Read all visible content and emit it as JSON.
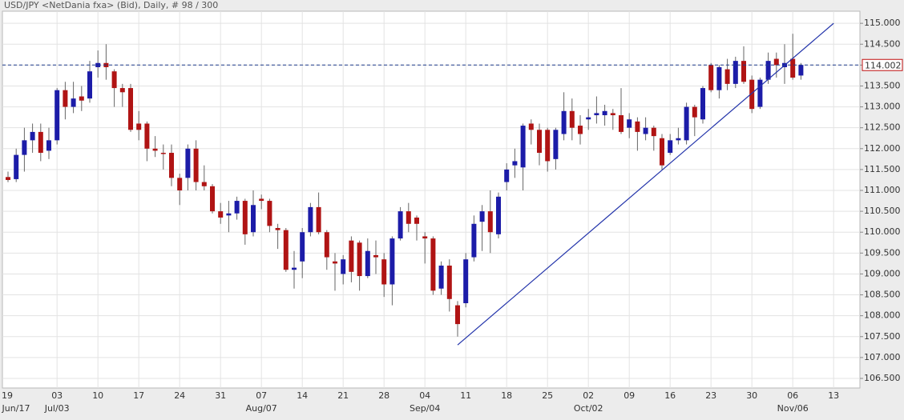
{
  "chart_data": {
    "type": "candlestick",
    "title": "USD/JPY <NetDania fxa> (Bid), Daily, # 98 / 300",
    "categories": [
      "2017-06-23",
      "2017-06-26",
      "2017-06-27",
      "2017-06-28",
      "2017-06-29",
      "2017-06-30",
      "2017-07-03",
      "2017-07-04",
      "2017-07-05",
      "2017-07-06",
      "2017-07-07",
      "2017-07-10",
      "2017-07-11",
      "2017-07-12",
      "2017-07-13",
      "2017-07-14",
      "2017-07-17",
      "2017-07-18",
      "2017-07-19",
      "2017-07-20",
      "2017-07-21",
      "2017-07-24",
      "2017-07-25",
      "2017-07-26",
      "2017-07-27",
      "2017-07-28",
      "2017-07-31",
      "2017-08-01",
      "2017-08-02",
      "2017-08-03",
      "2017-08-04",
      "2017-08-07",
      "2017-08-08",
      "2017-08-09",
      "2017-08-10",
      "2017-08-11",
      "2017-08-14",
      "2017-08-15",
      "2017-08-16",
      "2017-08-17",
      "2017-08-18",
      "2017-08-21",
      "2017-08-22",
      "2017-08-23",
      "2017-08-24",
      "2017-08-25",
      "2017-08-28",
      "2017-08-29",
      "2017-08-30",
      "2017-08-31",
      "2017-09-01",
      "2017-09-04",
      "2017-09-05",
      "2017-09-06",
      "2017-09-07",
      "2017-09-08",
      "2017-09-11",
      "2017-09-12",
      "2017-09-13",
      "2017-09-14",
      "2017-09-15",
      "2017-09-18",
      "2017-09-19",
      "2017-09-20",
      "2017-09-21",
      "2017-09-22",
      "2017-09-25",
      "2017-09-26",
      "2017-09-27",
      "2017-09-28",
      "2017-09-29",
      "2017-10-02",
      "2017-10-03",
      "2017-10-04",
      "2017-10-05",
      "2017-10-06",
      "2017-10-09",
      "2017-10-10",
      "2017-10-11",
      "2017-10-12",
      "2017-10-13",
      "2017-10-16",
      "2017-10-17",
      "2017-10-18",
      "2017-10-19",
      "2017-10-20",
      "2017-10-23",
      "2017-10-24",
      "2017-10-25",
      "2017-10-26",
      "2017-10-27",
      "2017-10-30",
      "2017-10-31",
      "2017-11-01",
      "2017-11-02",
      "2017-11-03",
      "2017-11-06",
      "2017-11-07"
    ],
    "open": [
      111.32,
      111.27,
      111.85,
      112.2,
      112.4,
      111.95,
      112.2,
      113.4,
      113.0,
      113.25,
      113.2,
      113.95,
      114.05,
      113.85,
      113.45,
      113.45,
      112.6,
      112.6,
      112.0,
      111.9,
      111.9,
      111.3,
      111.3,
      112.0,
      111.2,
      111.1,
      110.5,
      110.4,
      110.45,
      110.75,
      110.0,
      110.8,
      110.75,
      110.1,
      110.05,
      109.1,
      109.3,
      110.0,
      110.6,
      110.0,
      109.3,
      109.0,
      109.8,
      109.75,
      108.95,
      109.45,
      109.35,
      108.75,
      109.85,
      110.5,
      110.35,
      109.9,
      109.85,
      108.65,
      109.2,
      108.25,
      108.3,
      109.4,
      110.25,
      110.5,
      109.95,
      111.2,
      111.6,
      111.55,
      112.6,
      112.45,
      112.45,
      111.75,
      112.35,
      112.9,
      112.55,
      112.7,
      112.8,
      112.8,
      112.85,
      112.8,
      112.5,
      112.65,
      112.35,
      112.5,
      112.25,
      111.9,
      112.2,
      112.2,
      113.0,
      112.7,
      114.0,
      113.4,
      113.9,
      113.55,
      114.1,
      113.65,
      113.0,
      113.65,
      114.15,
      113.95,
      114.15,
      113.75
    ],
    "high": [
      111.45,
      112.0,
      112.5,
      112.6,
      112.6,
      112.5,
      113.45,
      113.6,
      113.6,
      113.5,
      114.1,
      114.35,
      114.5,
      113.9,
      113.55,
      113.55,
      112.9,
      112.65,
      112.3,
      112.1,
      112.1,
      111.4,
      112.1,
      112.2,
      111.6,
      111.15,
      110.7,
      110.75,
      110.85,
      110.8,
      111.0,
      110.9,
      110.8,
      110.2,
      110.1,
      109.55,
      110.1,
      110.7,
      110.95,
      110.05,
      109.5,
      109.45,
      109.9,
      109.8,
      109.85,
      109.8,
      109.5,
      109.9,
      110.6,
      110.7,
      110.4,
      110.0,
      109.9,
      109.3,
      109.35,
      108.35,
      109.5,
      110.4,
      110.65,
      111.0,
      110.95,
      111.65,
      112.0,
      112.6,
      112.7,
      112.6,
      112.5,
      112.5,
      113.35,
      113.2,
      112.8,
      112.95,
      113.25,
      113.05,
      112.95,
      113.45,
      112.85,
      112.75,
      112.75,
      112.55,
      112.35,
      112.35,
      112.5,
      113.1,
      113.05,
      113.5,
      114.05,
      114.0,
      114.15,
      114.2,
      114.45,
      113.75,
      113.7,
      114.3,
      114.3,
      114.5,
      114.75,
      114.05
    ],
    "low": [
      111.2,
      111.2,
      111.45,
      111.9,
      111.7,
      111.75,
      112.1,
      112.7,
      112.85,
      112.9,
      113.1,
      113.7,
      113.65,
      113.0,
      113.0,
      112.4,
      112.2,
      111.7,
      111.8,
      111.5,
      111.1,
      110.65,
      111.0,
      111.0,
      111.0,
      110.45,
      110.2,
      110.0,
      110.3,
      109.7,
      109.9,
      110.55,
      110.0,
      109.6,
      109.05,
      108.65,
      108.9,
      109.9,
      109.95,
      109.1,
      108.6,
      108.75,
      108.8,
      108.6,
      108.9,
      109.0,
      108.45,
      108.25,
      109.8,
      110.0,
      109.8,
      109.25,
      108.5,
      108.5,
      108.1,
      107.5,
      108.2,
      109.3,
      109.55,
      109.5,
      109.85,
      111.0,
      111.3,
      111.0,
      112.1,
      111.6,
      111.45,
      111.5,
      112.2,
      112.2,
      112.1,
      112.45,
      112.6,
      112.55,
      112.45,
      112.35,
      112.25,
      111.95,
      112.2,
      111.95,
      111.5,
      111.85,
      112.1,
      112.1,
      112.3,
      112.6,
      113.35,
      113.2,
      113.4,
      113.45,
      113.55,
      112.85,
      112.95,
      113.55,
      113.7,
      113.55,
      113.65,
      113.65
    ],
    "close": [
      111.25,
      111.85,
      112.2,
      112.4,
      111.9,
      112.2,
      113.4,
      113.0,
      113.2,
      113.15,
      113.85,
      114.05,
      113.95,
      113.45,
      113.35,
      112.45,
      112.45,
      112.0,
      111.95,
      111.88,
      111.3,
      111.0,
      112.0,
      111.2,
      111.1,
      110.5,
      110.35,
      110.45,
      110.75,
      109.95,
      110.65,
      110.75,
      110.15,
      110.05,
      109.1,
      109.15,
      110.0,
      110.6,
      110.0,
      109.4,
      109.25,
      109.35,
      109.05,
      108.95,
      109.55,
      109.4,
      108.75,
      109.85,
      110.5,
      110.2,
      110.2,
      109.85,
      108.6,
      109.2,
      108.4,
      107.8,
      109.35,
      110.2,
      110.5,
      110.0,
      110.85,
      111.5,
      111.7,
      112.55,
      112.45,
      111.9,
      111.7,
      112.45,
      112.9,
      112.5,
      112.35,
      112.75,
      112.85,
      112.9,
      112.8,
      112.4,
      112.7,
      112.4,
      112.5,
      112.3,
      111.6,
      112.2,
      112.25,
      113.0,
      112.75,
      113.45,
      113.4,
      113.95,
      113.55,
      114.1,
      113.6,
      112.95,
      113.65,
      114.1,
      114.0,
      114.05,
      113.7,
      114.002
    ],
    "up_color": "#1c1ca8",
    "down_color": "#b01414",
    "ylim": [
      106.27,
      115.29
    ],
    "yticks": [
      {
        "value": 106.5,
        "label": "106.500"
      },
      {
        "value": 107,
        "label": "107.000"
      },
      {
        "value": 107.5,
        "label": "107.500"
      },
      {
        "value": 108,
        "label": "108.000"
      },
      {
        "value": 108.5,
        "label": "108.500"
      },
      {
        "value": 109,
        "label": "109.000"
      },
      {
        "value": 109.5,
        "label": "109.500"
      },
      {
        "value": 110,
        "label": "110.000"
      },
      {
        "value": 110.5,
        "label": "110.500"
      },
      {
        "value": 111,
        "label": "111.000"
      },
      {
        "value": 111.5,
        "label": "111.500"
      },
      {
        "value": 112,
        "label": "112.000"
      },
      {
        "value": 112.5,
        "label": "112.500"
      },
      {
        "value": 113,
        "label": "113.000"
      },
      {
        "value": 113.5,
        "label": "113.500"
      },
      {
        "value": 114,
        "label": "114.000"
      },
      {
        "value": 114.5,
        "label": "114.500"
      },
      {
        "value": 115,
        "label": "115.000"
      }
    ],
    "xticks": [
      {
        "value": "2017-06-19",
        "label": "19",
        "sublabel": "Jun/17"
      },
      {
        "value": "2017-07-03",
        "label": "03",
        "sublabel": "Jul/03"
      },
      {
        "value": "2017-07-10",
        "label": "10"
      },
      {
        "value": "2017-07-17",
        "label": "17"
      },
      {
        "value": "2017-07-24",
        "label": "24"
      },
      {
        "value": "2017-07-31",
        "label": "31"
      },
      {
        "value": "2017-08-07",
        "label": "07",
        "sublabel": "Aug/07"
      },
      {
        "value": "2017-08-14",
        "label": "14"
      },
      {
        "value": "2017-08-21",
        "label": "21"
      },
      {
        "value": "2017-08-28",
        "label": "28"
      },
      {
        "value": "2017-09-04",
        "label": "04",
        "sublabel": "Sep/04"
      },
      {
        "value": "2017-09-11",
        "label": "11"
      },
      {
        "value": "2017-09-18",
        "label": "18"
      },
      {
        "value": "2017-09-25",
        "label": "25"
      },
      {
        "value": "2017-10-02",
        "label": "02",
        "sublabel": "Oct/02"
      },
      {
        "value": "2017-10-09",
        "label": "09"
      },
      {
        "value": "2017-10-16",
        "label": "16"
      },
      {
        "value": "2017-10-23",
        "label": "23"
      },
      {
        "value": "2017-10-30",
        "label": "30"
      },
      {
        "value": "2017-11-06",
        "label": "06",
        "sublabel": "Nov/06"
      },
      {
        "value": "2017-11-13",
        "label": "13"
      }
    ],
    "last_price": 114.002,
    "trendline": {
      "start": [
        "2017-09-08",
        107.3
      ],
      "end": [
        "2017-11-13",
        115.0
      ]
    },
    "grid": true
  }
}
